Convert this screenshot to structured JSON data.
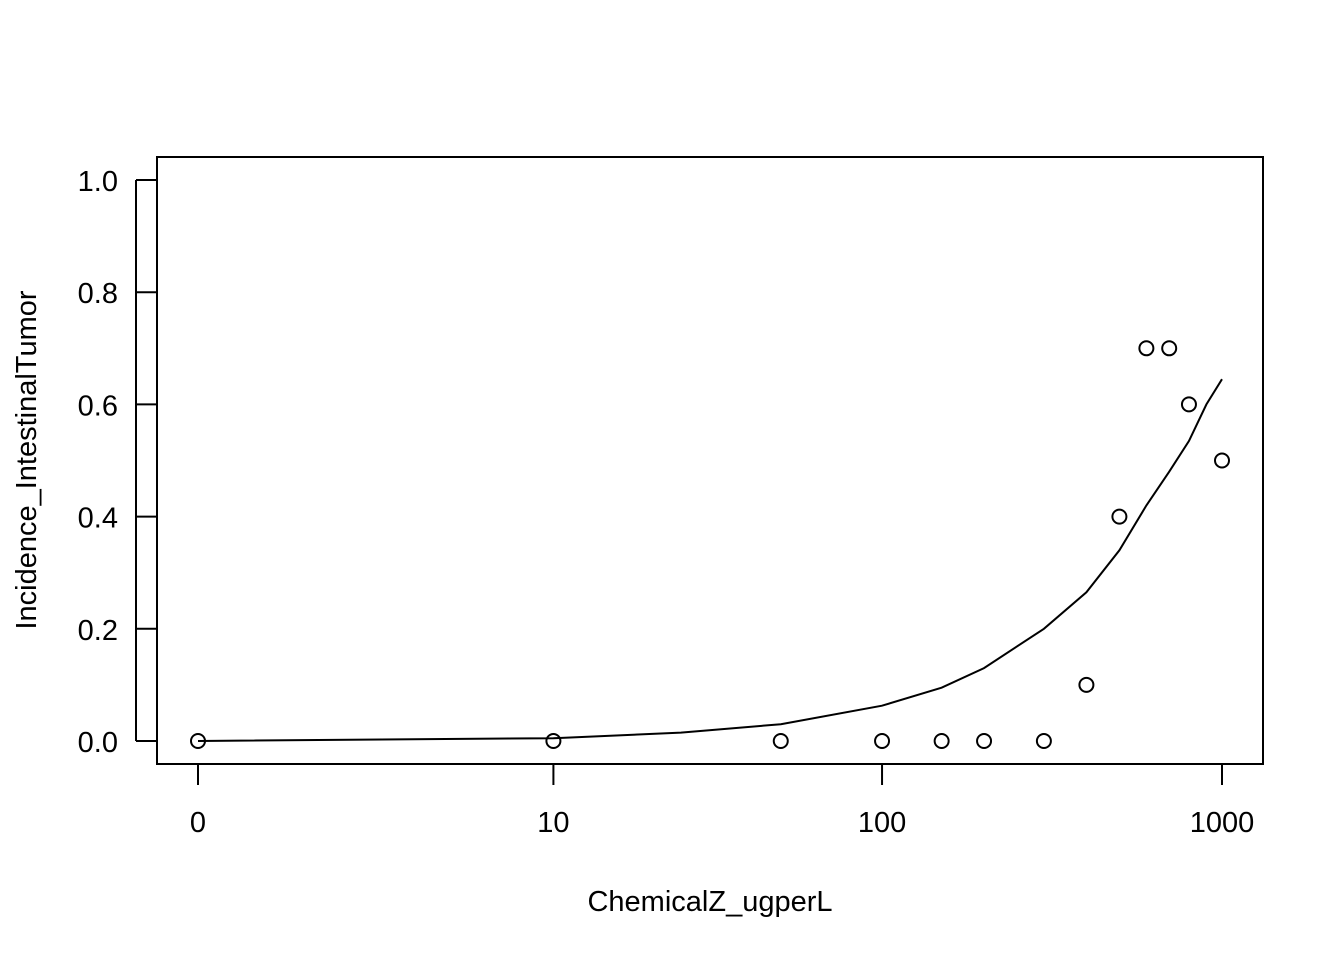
{
  "chart_data": {
    "type": "scatter",
    "title": "",
    "xlabel": "ChemicalZ_ugperL",
    "ylabel": "Incidence_IntestinalTumor",
    "x_scale": "log10(x+1)",
    "x_ticks": [
      {
        "value": 0,
        "label": "0"
      },
      {
        "value": 10,
        "label": "10"
      },
      {
        "value": 100,
        "label": "100"
      },
      {
        "value": 1000,
        "label": "1000"
      }
    ],
    "y_ticks": [
      {
        "value": 0.0,
        "label": "0.0"
      },
      {
        "value": 0.2,
        "label": "0.2"
      },
      {
        "value": 0.4,
        "label": "0.4"
      },
      {
        "value": 0.6,
        "label": "0.6"
      },
      {
        "value": 0.8,
        "label": "0.8"
      },
      {
        "value": 1.0,
        "label": "1.0"
      }
    ],
    "xlim": [
      0,
      1000
    ],
    "ylim": [
      0,
      1
    ],
    "grid": false,
    "points": [
      {
        "x": 0,
        "y": 0.0
      },
      {
        "x": 10,
        "y": 0.0
      },
      {
        "x": 50,
        "y": 0.0
      },
      {
        "x": 100,
        "y": 0.0
      },
      {
        "x": 150,
        "y": 0.0
      },
      {
        "x": 200,
        "y": 0.0
      },
      {
        "x": 300,
        "y": 0.0
      },
      {
        "x": 400,
        "y": 0.1
      },
      {
        "x": 500,
        "y": 0.4
      },
      {
        "x": 600,
        "y": 0.7
      },
      {
        "x": 700,
        "y": 0.7
      },
      {
        "x": 800,
        "y": 0.6
      },
      {
        "x": 1000,
        "y": 0.5
      }
    ],
    "fitted_curve": [
      {
        "x": 0,
        "y": 0.0
      },
      {
        "x": 10,
        "y": 0.005
      },
      {
        "x": 25,
        "y": 0.015
      },
      {
        "x": 50,
        "y": 0.03
      },
      {
        "x": 100,
        "y": 0.063
      },
      {
        "x": 150,
        "y": 0.095
      },
      {
        "x": 200,
        "y": 0.13
      },
      {
        "x": 300,
        "y": 0.2
      },
      {
        "x": 400,
        "y": 0.265
      },
      {
        "x": 500,
        "y": 0.34
      },
      {
        "x": 600,
        "y": 0.42
      },
      {
        "x": 700,
        "y": 0.48
      },
      {
        "x": 800,
        "y": 0.535
      },
      {
        "x": 900,
        "y": 0.6
      },
      {
        "x": 1000,
        "y": 0.645
      }
    ]
  }
}
